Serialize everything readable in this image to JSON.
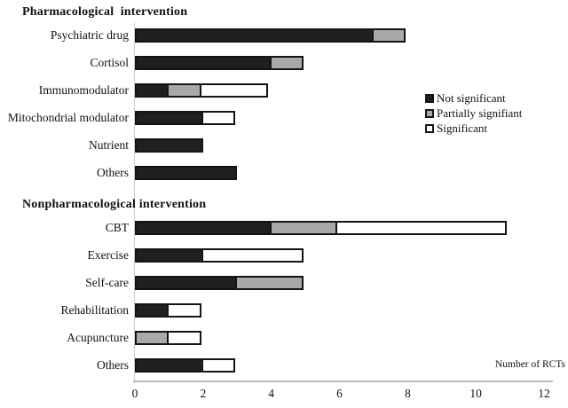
{
  "chart_data": {
    "type": "bar",
    "orientation": "horizontal",
    "stacked": true,
    "xlabel": "Number of RCTs",
    "xlim": [
      0,
      12
    ],
    "x_ticks": [
      0,
      2,
      4,
      6,
      8,
      10,
      12
    ],
    "grid": false,
    "legend_position": "middle-right",
    "series": [
      {
        "key": "not-significant",
        "name": "Not significant",
        "color": "#1f1f1f"
      },
      {
        "key": "partially-signifiant",
        "name": "Partially signifiant",
        "color": "#a9a9a9"
      },
      {
        "key": "significant",
        "name": "Significant",
        "color": "#ffffff"
      }
    ],
    "groups": [
      {
        "title": "Pharmacological  intervention",
        "rows": [
          {
            "label": "Psychiatric drug",
            "values": [
              7,
              1,
              0
            ]
          },
          {
            "label": "Cortisol",
            "values": [
              4,
              1,
              0
            ]
          },
          {
            "label": "Immunomodulator",
            "values": [
              1,
              1,
              2
            ]
          },
          {
            "label": "Mitochondrial modulator",
            "values": [
              2,
              0,
              1
            ]
          },
          {
            "label": "Nutrient",
            "values": [
              2,
              0,
              0
            ]
          },
          {
            "label": "Others",
            "values": [
              3,
              0,
              0
            ]
          }
        ]
      },
      {
        "title": "Nonpharmacological intervention",
        "rows": [
          {
            "label": "CBT",
            "values": [
              4,
              2,
              5
            ]
          },
          {
            "label": "Exercise",
            "values": [
              2,
              0,
              3
            ]
          },
          {
            "label": "Self-care",
            "values": [
              3,
              2,
              0
            ]
          },
          {
            "label": "Rehabilitation",
            "values": [
              1,
              0,
              1
            ]
          },
          {
            "label": "Acupuncture",
            "values": [
              0,
              1,
              1
            ]
          },
          {
            "label": "Others",
            "values": [
              2,
              0,
              1
            ]
          }
        ]
      }
    ]
  }
}
